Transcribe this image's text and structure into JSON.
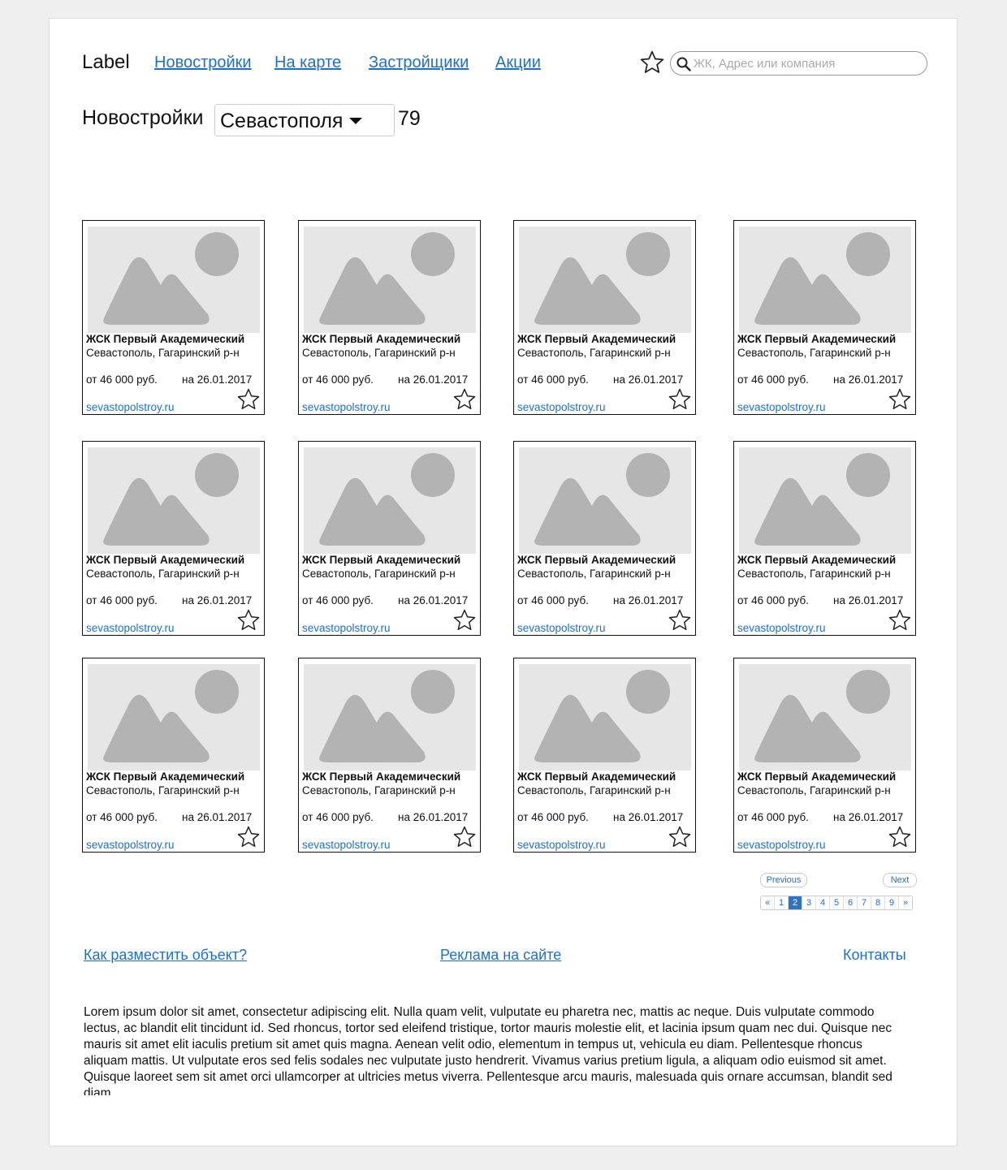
{
  "header": {
    "logo": "Label",
    "nav": [
      "Новостройки",
      "На карте",
      "Застройщики",
      "Акции"
    ],
    "search_placeholder": "ЖК, Адрес или компания"
  },
  "title_row": {
    "title": "Новостройки",
    "city": "Севастополя",
    "count": "79"
  },
  "cards": [
    {
      "name": "ЖСК Первый Академический",
      "address": "Севастополь, Гагаринский р-н",
      "price": "от 46 000 руб.",
      "date": "на 26.01.2017",
      "site": "sevastopolstroy.ru"
    },
    {
      "name": "ЖСК Первый Академический",
      "address": "Севастополь, Гагаринский р-н",
      "price": "от 46 000 руб.",
      "date": "на 26.01.2017",
      "site": "sevastopolstroy.ru"
    },
    {
      "name": "ЖСК Первый Академический",
      "address": "Севастополь, Гагаринский р-н",
      "price": "от 46 000 руб.",
      "date": "на 26.01.2017",
      "site": "sevastopolstroy.ru"
    },
    {
      "name": "ЖСК Первый Академический",
      "address": "Севастополь, Гагаринский р-н",
      "price": "от 46 000 руб.",
      "date": "на 26.01.2017",
      "site": "sevastopolstroy.ru"
    },
    {
      "name": "ЖСК Первый Академический",
      "address": "Севастополь, Гагаринский р-н",
      "price": "от 46 000 руб.",
      "date": "на 26.01.2017",
      "site": "sevastopolstroy.ru"
    },
    {
      "name": "ЖСК Первый Академический",
      "address": "Севастополь, Гагаринский р-н",
      "price": "от 46 000 руб.",
      "date": "на 26.01.2017",
      "site": "sevastopolstroy.ru"
    },
    {
      "name": "ЖСК Первый Академический",
      "address": "Севастополь, Гагаринский р-н",
      "price": "от 46 000 руб.",
      "date": "на 26.01.2017",
      "site": "sevastopolstroy.ru"
    },
    {
      "name": "ЖСК Первый Академический",
      "address": "Севастополь, Гагаринский р-н",
      "price": "от 46 000 руб.",
      "date": "на 26.01.2017",
      "site": "sevastopolstroy.ru"
    },
    {
      "name": "ЖСК Первый Академический",
      "address": "Севастополь, Гагаринский р-н",
      "price": "от 46 000 руб.",
      "date": "на 26.01.2017",
      "site": "sevastopolstroy.ru"
    },
    {
      "name": "ЖСК Первый Академический",
      "address": "Севастополь, Гагаринский р-н",
      "price": "от 46 000 руб.",
      "date": "на 26.01.2017",
      "site": "sevastopolstroy.ru"
    },
    {
      "name": "ЖСК Первый Академический",
      "address": "Севастополь, Гагаринский р-н",
      "price": "от 46 000 руб.",
      "date": "на 26.01.2017",
      "site": "sevastopolstroy.ru"
    },
    {
      "name": "ЖСК Первый Академический",
      "address": "Севастополь, Гагаринский р-н",
      "price": "от 46 000 руб.",
      "date": "на 26.01.2017",
      "site": "sevastopolstroy.ru"
    }
  ],
  "pagination": {
    "previous": "Previous",
    "next": "Next",
    "first": "«",
    "last": "»",
    "pages": [
      "1",
      "2",
      "3",
      "4",
      "5",
      "6",
      "7",
      "8",
      "9"
    ],
    "current": "2"
  },
  "footer": {
    "links": [
      "Как разместить объект?",
      "Реклама на сайте",
      "Контакты"
    ],
    "text": "Lorem ipsum dolor sit amet, consectetur adipiscing elit. Nulla quam velit, vulputate eu pharetra nec, mattis ac neque. Duis vulputate commodo lectus, ac blandit elit tincidunt id. Sed rhoncus, tortor sed eleifend tristique, tortor mauris molestie elit, et lacinia ipsum quam nec dui. Quisque nec mauris sit amet elit iaculis pretium sit amet quis magna. Aenean velit odio, elementum in tempus ut, vehicula eu diam. Pellentesque rhoncus aliquam mattis. Ut vulputate eros sed felis sodales nec vulputate justo hendrerit. Vivamus varius pretium ligula, a aliquam odio euismod sit amet. Quisque laoreet sem sit amet orci ullamcorper at ultricies metus viverra. Pellentesque arcu mauris, malesuada quis ornare accumsan, blandit sed diam."
  },
  "colors": {
    "link": "#1f6fd0",
    "page_bg": "#efefef",
    "placeholder_bg": "#e6e6e6",
    "placeholder_shape": "#b3b3b3",
    "pagination_active": "#2f74c4"
  },
  "icons": {
    "favorite": "star-outline-icon",
    "search": "magnifier-icon",
    "image": "image-placeholder-icon"
  }
}
